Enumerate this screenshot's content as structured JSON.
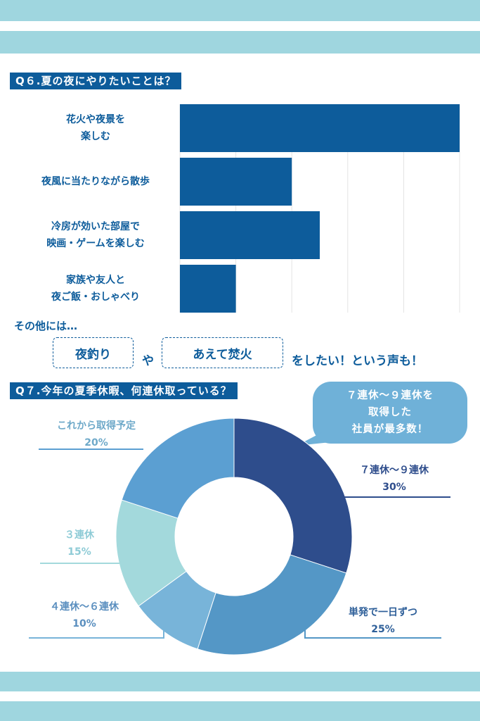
{
  "colors": {
    "stripe": "#9fd6df",
    "title_bg": "#0d5c9b",
    "bar": "#0d5c9b",
    "text_primary": "#0d5c9b",
    "bubble": "#6fb1d8"
  },
  "q6": {
    "title": "Q６.夏の夜にやりたいことは？"
  },
  "other": {
    "intro": "その他には…",
    "box1": "夜釣り",
    "connector": "や",
    "box2": "あえて焚火",
    "suffix": "をしたい！という声も！"
  },
  "q7": {
    "title": "Q７.今年の夏季休暇、何連休取っている？",
    "bubble_text": "７連休～９連休を\n取得した\n社員が最多数！"
  },
  "chart_data": [
    {
      "type": "bar",
      "orientation": "horizontal",
      "categories": [
        "花火や夜景を\n楽しむ",
        "夜風に当たりながら散歩",
        "冷房が効いた部屋で\n映画・ゲームを楽しむ",
        "家族や友人と\n夜ご飯・おしゃべり"
      ],
      "values": [
        100,
        40,
        50,
        20
      ],
      "xlim": [
        0,
        100
      ],
      "grid": true,
      "title": "",
      "xlabel": "",
      "ylabel": ""
    },
    {
      "type": "pie",
      "donut": true,
      "slices": [
        {
          "label": "７連休～９連休",
          "value": 30,
          "value_text": "30%",
          "color": "#2e4d8c"
        },
        {
          "label": "単発で一日ずつ",
          "value": 25,
          "value_text": "25%",
          "color": "#5497c6"
        },
        {
          "label": "４連休～６連休",
          "value": 10,
          "value_text": "10%",
          "color": "#78b4d9"
        },
        {
          "label": "３連休",
          "value": 15,
          "value_text": "15%",
          "color": "#a3d9dc"
        },
        {
          "label": "これから取得予定",
          "value": 20,
          "value_text": "20%",
          "color": "#5b9fd2"
        }
      ]
    }
  ]
}
